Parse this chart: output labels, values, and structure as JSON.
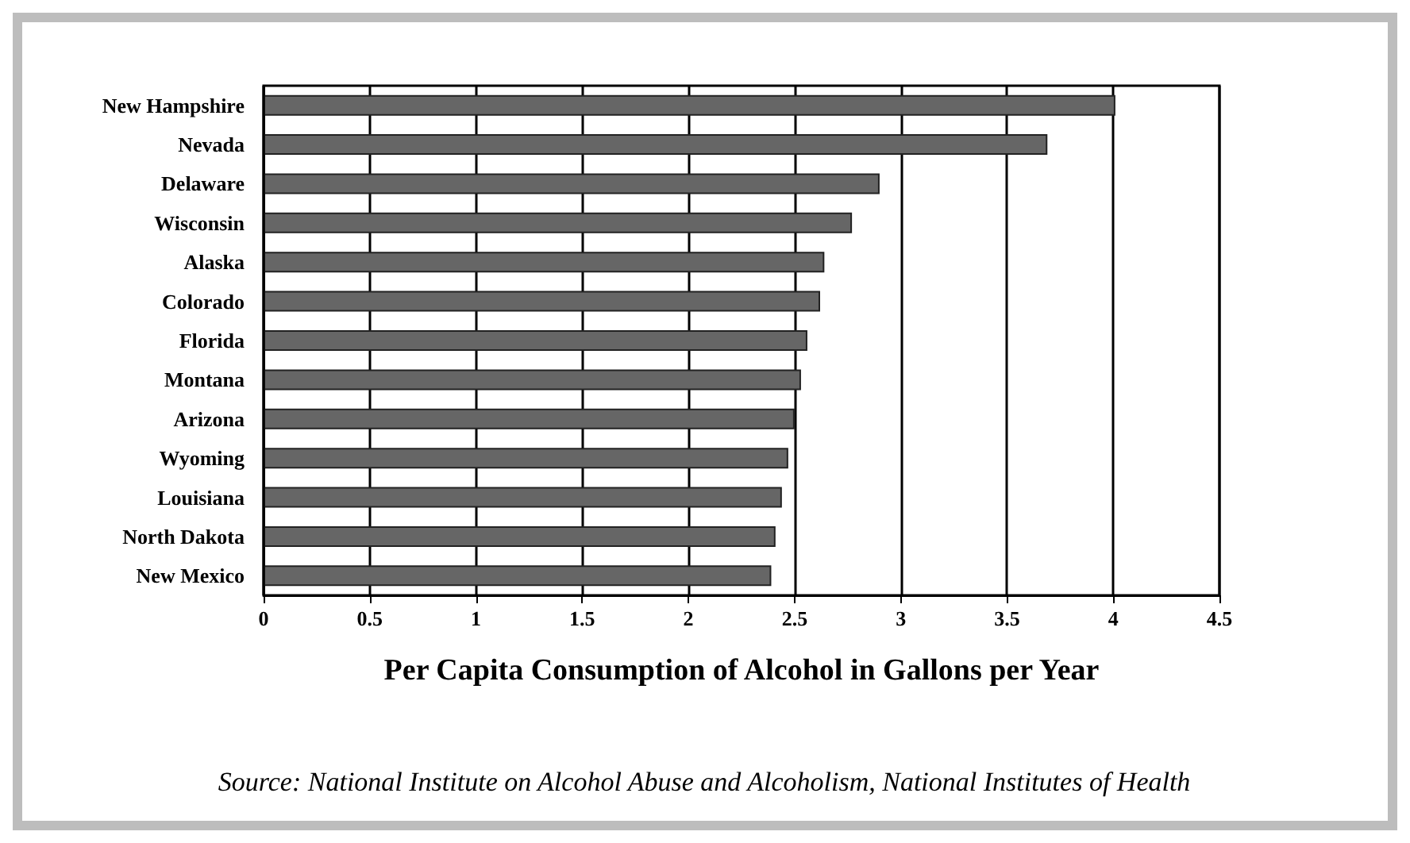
{
  "chart_data": {
    "type": "bar",
    "orientation": "horizontal",
    "xlabel": "Per Capita Consumption of Alcohol in Gallons per Year",
    "categories": [
      "New Hampshire",
      "Nevada",
      "Delaware",
      "Wisconsin",
      "Alaska",
      "Colorado",
      "Florida",
      "Montana",
      "Arizona",
      "Wyoming",
      "Louisiana",
      "North Dakota",
      "New Mexico"
    ],
    "values": [
      4.01,
      3.69,
      2.9,
      2.77,
      2.64,
      2.62,
      2.56,
      2.53,
      2.5,
      2.47,
      2.44,
      2.41,
      2.39
    ],
    "color": "#666666",
    "xlim": [
      0,
      4.5
    ],
    "xticks": [
      0,
      0.5,
      1,
      1.5,
      2,
      2.5,
      3,
      3.5,
      4,
      4.5
    ],
    "grid": "x",
    "annotations": [
      "Source: National Institute on Alcohol Abuse and Alcoholism, National Institutes of Health"
    ]
  }
}
